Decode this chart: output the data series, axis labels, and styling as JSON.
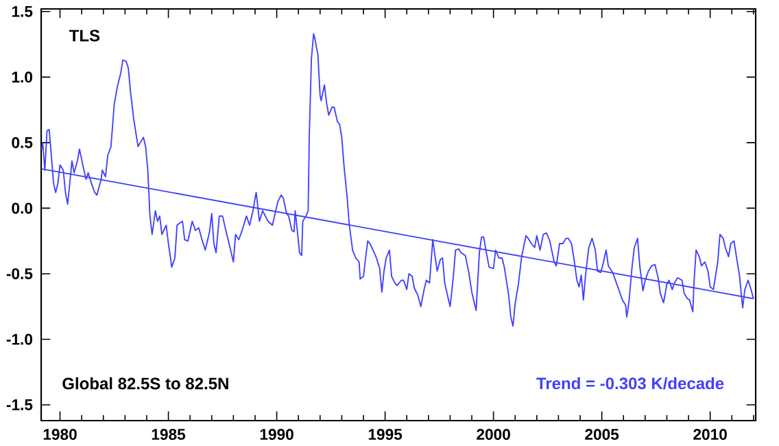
{
  "chart_data": {
    "type": "line",
    "title": "TLS",
    "annotations": [
      "Global  82.5S to  82.5N",
      "Trend = -0.303 K/decade"
    ],
    "xlim": [
      1979.13,
      2012.1
    ],
    "ylim": [
      -1.62,
      1.52
    ],
    "xticks": [
      1980,
      {
        "value": 1981,
        "label": null
      },
      {
        "value": 1982,
        "label": null
      },
      {
        "value": 1983,
        "label": null
      },
      {
        "value": 1984,
        "label": null
      },
      1985,
      {
        "value": 1986,
        "label": null
      },
      {
        "value": 1987,
        "label": null
      },
      {
        "value": 1988,
        "label": null
      },
      {
        "value": 1989,
        "label": null
      },
      1990,
      {
        "value": 1991,
        "label": null
      },
      {
        "value": 1992,
        "label": null
      },
      {
        "value": 1993,
        "label": null
      },
      {
        "value": 1994,
        "label": null
      },
      1995,
      {
        "value": 1996,
        "label": null
      },
      {
        "value": 1997,
        "label": null
      },
      {
        "value": 1998,
        "label": null
      },
      {
        "value": 1999,
        "label": null
      },
      2000,
      {
        "value": 2001,
        "label": null
      },
      {
        "value": 2002,
        "label": null
      },
      {
        "value": 2003,
        "label": null
      },
      {
        "value": 2004,
        "label": null
      },
      2005,
      {
        "value": 2006,
        "label": null
      },
      {
        "value": 2007,
        "label": null
      },
      {
        "value": 2008,
        "label": null
      },
      {
        "value": 2009,
        "label": null
      },
      2010,
      {
        "value": 2011,
        "label": null
      },
      {
        "value": 2012,
        "label": null
      }
    ],
    "yticks": [
      -1.5,
      {
        "value": -1,
        "label": "-1.0"
      },
      -0.5,
      {
        "value": 0,
        "label": "0.0"
      },
      0.5,
      {
        "value": 1,
        "label": "1.0"
      },
      1.5
    ],
    "series": [
      {
        "color": "#4040ff",
        "x": [
          1979.15,
          1979.2,
          1979.3,
          1979.4,
          1979.5,
          1979.6,
          1979.7,
          1979.8,
          1979.9,
          1980.0,
          1980.15,
          1980.25,
          1980.35,
          1980.45,
          1980.55,
          1980.65,
          1980.8,
          1980.9,
          1981.05,
          1981.2,
          1981.3,
          1981.45,
          1981.6,
          1981.7,
          1981.9,
          1981.95,
          1982.1,
          1982.2,
          1982.35,
          1982.5,
          1982.65,
          1982.8,
          1982.9,
          1983.05,
          1983.15,
          1983.25,
          1983.4,
          1983.6,
          1983.7,
          1983.85,
          1983.95,
          1984.05,
          1984.15,
          1984.25,
          1984.4,
          1984.5,
          1984.6,
          1984.7,
          1984.9,
          1985.0,
          1985.1,
          1985.15,
          1985.3,
          1985.4,
          1985.55,
          1985.65,
          1985.75,
          1985.9,
          1986.1,
          1986.25,
          1986.4,
          1986.55,
          1986.7,
          1986.9,
          1987.0,
          1987.1,
          1987.2,
          1987.35,
          1987.5,
          1987.65,
          1987.8,
          1987.9,
          1988.0,
          1988.1,
          1988.25,
          1988.4,
          1988.6,
          1988.75,
          1988.9,
          1989.05,
          1989.1,
          1989.2,
          1989.35,
          1989.6,
          1989.8,
          1990.05,
          1990.2,
          1990.3,
          1990.45,
          1990.55,
          1990.7,
          1990.8,
          1990.85,
          1990.95,
          1991.05,
          1991.15,
          1991.2,
          1991.35,
          1991.45,
          1991.5,
          1991.6,
          1991.7,
          1991.75,
          1991.9,
          1992.0,
          1992.05,
          1992.2,
          1992.3,
          1992.4,
          1992.55,
          1992.65,
          1992.8,
          1992.9,
          1993.0,
          1993.1,
          1993.25,
          1993.35,
          1993.5,
          1993.65,
          1993.8,
          1993.85,
          1994.0,
          1994.1,
          1994.2,
          1994.3,
          1994.5,
          1994.6,
          1994.75,
          1994.85,
          1994.95,
          1995.05,
          1995.2,
          1995.3,
          1995.45,
          1995.55,
          1995.75,
          1995.85,
          1996.0,
          1996.1,
          1996.25,
          1996.35,
          1996.5,
          1996.65,
          1996.8,
          1996.9,
          1997.05,
          1997.2,
          1997.3,
          1997.4,
          1997.55,
          1997.65,
          1997.75,
          1997.9,
          1998.0,
          1998.15,
          1998.25,
          1998.4,
          1998.5,
          1998.7,
          1998.85,
          1999.0,
          1999.2,
          1999.35,
          1999.45,
          1999.55,
          1999.65,
          1999.8,
          2000.0,
          2000.1,
          2000.25,
          2000.4,
          2000.5,
          2000.7,
          2000.8,
          2000.9,
          2001.0,
          2001.15,
          2001.3,
          2001.5,
          2001.6,
          2001.75,
          2001.9,
          2002.0,
          2002.15,
          2002.3,
          2002.45,
          2002.6,
          2002.8,
          2002.9,
          2003.05,
          2003.2,
          2003.35,
          2003.45,
          2003.6,
          2003.7,
          2003.85,
          2003.95,
          2004.05,
          2004.15,
          2004.25,
          2004.4,
          2004.55,
          2004.7,
          2004.8,
          2004.95,
          2005.05,
          2005.2,
          2005.3,
          2005.5,
          2005.65,
          2005.8,
          2005.95,
          2006.1,
          2006.15,
          2006.25,
          2006.4,
          2006.5,
          2006.65,
          2006.75,
          2006.9,
          2007.0,
          2007.15,
          2007.3,
          2007.45,
          2007.6,
          2007.7,
          2007.85,
          2008.0,
          2008.1,
          2008.25,
          2008.35,
          2008.5,
          2008.7,
          2008.8,
          2008.95,
          2009.05,
          2009.2,
          2009.25,
          2009.35,
          2009.5,
          2009.6,
          2009.75,
          2009.9,
          2010.0,
          2010.15,
          2010.35,
          2010.45,
          2010.6,
          2010.7,
          2010.85,
          2010.95,
          2011.1,
          2011.2,
          2011.35,
          2011.5,
          2011.6,
          2011.75,
          2011.85,
          2012.0
        ],
        "values": [
          0.45,
          0.5,
          0.29,
          0.59,
          0.6,
          0.4,
          0.19,
          0.12,
          0.19,
          0.33,
          0.29,
          0.12,
          0.03,
          0.19,
          0.36,
          0.27,
          0.36,
          0.45,
          0.33,
          0.22,
          0.27,
          0.19,
          0.12,
          0.1,
          0.22,
          0.29,
          0.24,
          0.4,
          0.47,
          0.79,
          0.93,
          1.03,
          1.13,
          1.12,
          1.07,
          0.89,
          0.68,
          0.47,
          0.5,
          0.54,
          0.47,
          0.29,
          -0.06,
          -0.2,
          -0.02,
          -0.1,
          -0.06,
          -0.2,
          -0.13,
          -0.27,
          -0.38,
          -0.45,
          -0.38,
          -0.13,
          -0.11,
          -0.1,
          -0.24,
          -0.25,
          -0.1,
          -0.17,
          -0.15,
          -0.24,
          -0.32,
          -0.18,
          -0.04,
          -0.27,
          -0.34,
          -0.06,
          -0.06,
          -0.17,
          -0.27,
          -0.34,
          -0.41,
          -0.2,
          -0.24,
          -0.17,
          -0.06,
          -0.13,
          -0.02,
          0.12,
          0.05,
          -0.1,
          -0.02,
          -0.1,
          -0.13,
          0.05,
          0.1,
          0.08,
          -0.04,
          -0.06,
          -0.17,
          -0.18,
          -0.02,
          -0.17,
          -0.34,
          -0.36,
          -0.1,
          -0.06,
          -0.02,
          0.54,
          1.14,
          1.33,
          1.3,
          1.17,
          0.86,
          0.82,
          0.94,
          0.8,
          0.71,
          0.77,
          0.77,
          0.66,
          0.64,
          0.54,
          0.33,
          0.08,
          -0.13,
          -0.32,
          -0.38,
          -0.41,
          -0.54,
          -0.52,
          -0.38,
          -0.25,
          -0.27,
          -0.34,
          -0.38,
          -0.46,
          -0.64,
          -0.48,
          -0.38,
          -0.32,
          -0.52,
          -0.57,
          -0.59,
          -0.55,
          -0.55,
          -0.62,
          -0.5,
          -0.52,
          -0.61,
          -0.66,
          -0.75,
          -0.62,
          -0.55,
          -0.57,
          -0.24,
          -0.36,
          -0.48,
          -0.39,
          -0.38,
          -0.57,
          -0.68,
          -0.75,
          -0.52,
          -0.32,
          -0.31,
          -0.34,
          -0.36,
          -0.48,
          -0.64,
          -0.78,
          -0.34,
          -0.22,
          -0.22,
          -0.32,
          -0.45,
          -0.46,
          -0.32,
          -0.38,
          -0.38,
          -0.45,
          -0.66,
          -0.83,
          -0.9,
          -0.73,
          -0.58,
          -0.37,
          -0.21,
          -0.23,
          -0.27,
          -0.3,
          -0.21,
          -0.32,
          -0.2,
          -0.19,
          -0.25,
          -0.41,
          -0.44,
          -0.27,
          -0.27,
          -0.23,
          -0.23,
          -0.27,
          -0.37,
          -0.55,
          -0.6,
          -0.51,
          -0.7,
          -0.51,
          -0.3,
          -0.23,
          -0.32,
          -0.48,
          -0.49,
          -0.43,
          -0.32,
          -0.44,
          -0.49,
          -0.56,
          -0.63,
          -0.7,
          -0.74,
          -0.83,
          -0.72,
          -0.44,
          -0.3,
          -0.23,
          -0.44,
          -0.63,
          -0.55,
          -0.48,
          -0.44,
          -0.43,
          -0.53,
          -0.65,
          -0.72,
          -0.58,
          -0.55,
          -0.62,
          -0.57,
          -0.53,
          -0.55,
          -0.65,
          -0.69,
          -0.7,
          -0.79,
          -0.58,
          -0.32,
          -0.37,
          -0.44,
          -0.41,
          -0.48,
          -0.6,
          -0.62,
          -0.41,
          -0.2,
          -0.23,
          -0.3,
          -0.37,
          -0.27,
          -0.25,
          -0.36,
          -0.51,
          -0.76,
          -0.62,
          -0.55,
          -0.6,
          -0.69
        ]
      },
      {
        "type": "line",
        "color": "#4040ff",
        "x": [
          1979.15,
          2012.0
        ],
        "values": [
          0.3,
          -0.69
        ]
      }
    ]
  }
}
